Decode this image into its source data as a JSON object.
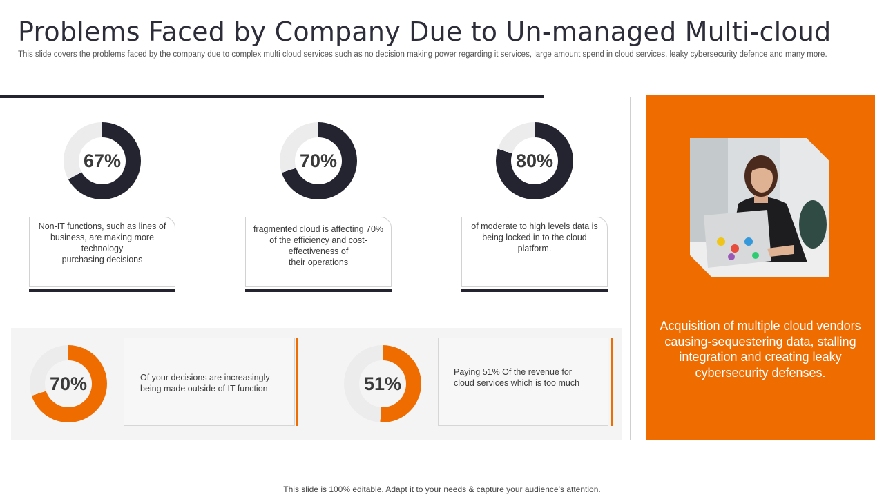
{
  "title": "Problems Faced by Company Due to Un-managed Multi-cloud",
  "subtitle": "This slide covers the problems faced by the company due to  complex multi cloud services such as no decision making power regarding it services, large amount spend in cloud services, leaky cybersecurity defence and many more.",
  "colors": {
    "dark": "#242431",
    "orange": "#ef6c00",
    "track": "#ececec"
  },
  "top_stats": [
    {
      "value": 67,
      "label": "67%",
      "text": "Non-IT functions, such as lines of business, are making more technology\npurchasing decisions"
    },
    {
      "value": 70,
      "label": "70%",
      "text": "fragmented  cloud is affecting 70%\nof the efficiency and cost-effectiveness  of\ntheir operations"
    },
    {
      "value": 80,
      "label": "80%",
      "text": "of moderate to high levels data is being locked in to the cloud platform."
    }
  ],
  "bottom_stats": [
    {
      "value": 70,
      "label": "70%",
      "text": "Of your decisions are increasingly being made outside of IT function"
    },
    {
      "value": 51,
      "label": "51%",
      "text": "Paying 51% Of the revenue  for cloud services which is too much"
    }
  ],
  "side_panel": {
    "image": "woman-using-laptop-photo",
    "text": "Acquisition of multiple cloud vendors causing-sequestering data, stalling integration and creating leaky cybersecurity defenses."
  },
  "footer": "This slide is 100% editable. Adapt it to your needs & capture your audience’s attention."
}
